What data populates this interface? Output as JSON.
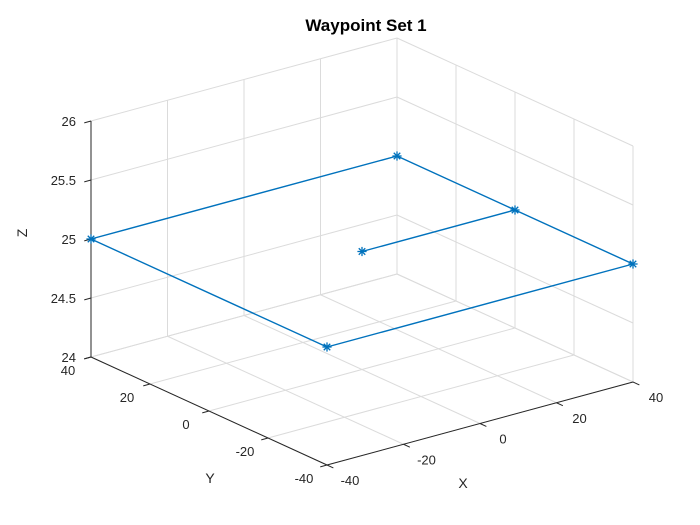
{
  "title": {
    "text": "Waypoint Set 1"
  },
  "axes": {
    "xlabel": "X",
    "ylabel": "Y",
    "zlabel": "Z",
    "xticks": [
      -40,
      -20,
      0,
      20,
      40
    ],
    "yticks": [
      -40,
      -20,
      0,
      20,
      40
    ],
    "zticks": [
      24,
      24.5,
      25,
      25.5,
      26
    ],
    "xlim": [
      -40,
      40
    ],
    "ylim": [
      -40,
      40
    ],
    "zlim": [
      24,
      26
    ]
  },
  "chart_data": {
    "type": "line",
    "projection": "3d",
    "title": "Waypoint Set 1",
    "xlabel": "X",
    "ylabel": "Y",
    "zlabel": "Z",
    "xlim": [
      -40,
      40
    ],
    "ylim": [
      -40,
      40
    ],
    "zlim": [
      24,
      26
    ],
    "grid": true,
    "view": {
      "azimuth": -37.5,
      "elevation": 30
    },
    "series": [
      {
        "name": "waypoint-set-1",
        "marker": "*",
        "color": "#0072BD",
        "path": [
          [
            0,
            0,
            25
          ],
          [
            40,
            0,
            25
          ],
          [
            40,
            40,
            25
          ],
          [
            -40,
            40,
            25
          ],
          [
            -40,
            -40,
            25
          ],
          [
            40,
            -40,
            25
          ],
          [
            40,
            0,
            25
          ]
        ]
      }
    ]
  },
  "colors": {
    "line": "#0072BD",
    "axis": "#262626",
    "grid": "#DBDBDB",
    "title": "#000000",
    "background": "#FFFFFF"
  }
}
